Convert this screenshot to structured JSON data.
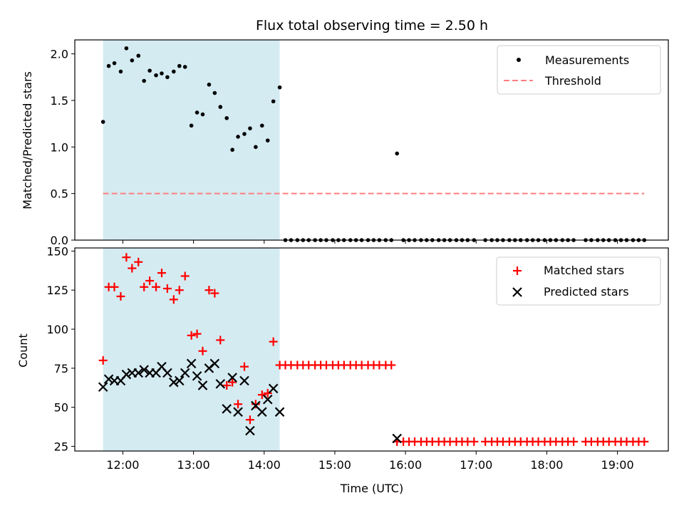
{
  "chart_data": {
    "title": "Flux total observing time = 2.50 h",
    "xlabel": "Time (UTC)",
    "xticks": [
      {
        "label": "12:00",
        "value": 12.0
      },
      {
        "label": "13:00",
        "value": 13.0
      },
      {
        "label": "14:00",
        "value": 14.0
      },
      {
        "label": "15:00",
        "value": 15.0
      },
      {
        "label": "16:00",
        "value": 16.0
      },
      {
        "label": "17:00",
        "value": 17.0
      },
      {
        "label": "18:00",
        "value": 18.0
      },
      {
        "label": "19:00",
        "value": 19.0
      }
    ],
    "xlim": [
      11.32,
      19.72
    ],
    "shaded_region": {
      "x_start": 11.72,
      "x_end": 14.22,
      "color": "#add8e6"
    },
    "colors": {
      "measurements": "#000000",
      "threshold": "#ff7f7f",
      "matched": "#ff0000",
      "predicted": "#000000",
      "shade": "#add8e6"
    },
    "charts": [
      {
        "type": "scatter",
        "panel": "top",
        "ylabel": "Matched/Predicted stars",
        "ylim": [
          0,
          2.15
        ],
        "yticks": [
          "0.0",
          "0.5",
          "1.0",
          "1.5",
          "2.0"
        ],
        "legend_position": "top-right",
        "series": [
          {
            "name": "Measurements",
            "style": "dot",
            "x": [
              11.72,
              11.8,
              11.88,
              11.97,
              12.05,
              12.13,
              12.22,
              12.3,
              12.38,
              12.47,
              12.55,
              12.63,
              12.72,
              12.8,
              12.88,
              12.97,
              13.05,
              13.13,
              13.22,
              13.3,
              13.38,
              13.47,
              13.55,
              13.63,
              13.72,
              13.8,
              13.88,
              13.97,
              14.05,
              14.13,
              14.22,
              14.3,
              14.38,
              14.47,
              14.55,
              14.63,
              14.72,
              14.8,
              14.88,
              14.97,
              15.05,
              15.13,
              15.22,
              15.3,
              15.38,
              15.47,
              15.55,
              15.63,
              15.72,
              15.8,
              15.88,
              15.97,
              16.05,
              16.13,
              16.22,
              16.3,
              16.38,
              16.47,
              16.55,
              16.63,
              16.72,
              16.8,
              16.88,
              16.97,
              17.13,
              17.22,
              17.3,
              17.38,
              17.47,
              17.55,
              17.63,
              17.72,
              17.8,
              17.88,
              17.97,
              18.05,
              18.13,
              18.22,
              18.3,
              18.38,
              18.55,
              18.63,
              18.72,
              18.8,
              18.88,
              18.97,
              19.05,
              19.13,
              19.22,
              19.3,
              19.38
            ],
            "y": [
              1.27,
              1.87,
              1.9,
              1.81,
              2.06,
              1.93,
              1.98,
              1.71,
              1.82,
              1.77,
              1.79,
              1.75,
              1.81,
              1.87,
              1.86,
              1.23,
              1.37,
              1.35,
              1.67,
              1.58,
              1.43,
              1.31,
              0.97,
              1.11,
              1.14,
              1.2,
              1.0,
              1.23,
              1.07,
              1.49,
              1.64,
              0.0,
              0.0,
              0.0,
              0.0,
              0.0,
              0.0,
              0.0,
              0.0,
              0.0,
              0.0,
              0.0,
              0.0,
              0.0,
              0.0,
              0.0,
              0.0,
              0.0,
              0.0,
              0.0,
              0.93,
              0.0,
              0.0,
              0.0,
              0.0,
              0.0,
              0.0,
              0.0,
              0.0,
              0.0,
              0.0,
              0.0,
              0.0,
              0.0,
              0.0,
              0.0,
              0.0,
              0.0,
              0.0,
              0.0,
              0.0,
              0.0,
              0.0,
              0.0,
              0.0,
              0.0,
              0.0,
              0.0,
              0.0,
              0.0,
              0.0,
              0.0,
              0.0,
              0.0,
              0.0,
              0.0,
              0.0,
              0.0,
              0.0,
              0.0,
              0.0
            ]
          },
          {
            "name": "Threshold",
            "style": "dashed-line",
            "x": [
              11.72,
              19.38
            ],
            "y": [
              0.5,
              0.5
            ]
          }
        ]
      },
      {
        "type": "scatter",
        "panel": "bottom",
        "ylabel": "Count",
        "ylim": [
          22,
          152
        ],
        "yticks": [
          "25",
          "50",
          "75",
          "100",
          "125",
          "150"
        ],
        "legend_position": "top-right",
        "series": [
          {
            "name": "Matched stars",
            "style": "plus",
            "x": [
              11.72,
              11.8,
              11.88,
              11.97,
              12.05,
              12.13,
              12.22,
              12.3,
              12.38,
              12.47,
              12.55,
              12.63,
              12.72,
              12.8,
              12.88,
              12.97,
              13.05,
              13.13,
              13.22,
              13.3,
              13.38,
              13.47,
              13.55,
              13.63,
              13.72,
              13.8,
              13.88,
              13.97,
              14.05,
              14.13,
              14.22,
              14.3,
              14.38,
              14.47,
              14.55,
              14.63,
              14.72,
              14.8,
              14.88,
              14.97,
              15.05,
              15.13,
              15.22,
              15.3,
              15.38,
              15.47,
              15.55,
              15.63,
              15.72,
              15.8,
              15.88,
              15.97,
              16.05,
              16.13,
              16.22,
              16.3,
              16.38,
              16.47,
              16.55,
              16.63,
              16.72,
              16.8,
              16.88,
              16.97,
              17.13,
              17.22,
              17.3,
              17.38,
              17.47,
              17.55,
              17.63,
              17.72,
              17.8,
              17.88,
              17.97,
              18.05,
              18.13,
              18.22,
              18.3,
              18.38,
              18.55,
              18.63,
              18.72,
              18.8,
              18.88,
              18.97,
              19.05,
              19.13,
              19.22,
              19.3,
              19.38
            ],
            "y": [
              80,
              127,
              127,
              121,
              146,
              139,
              143,
              127,
              131,
              127,
              136,
              126,
              119,
              125,
              134,
              96,
              97,
              86,
              125,
              123,
              93,
              64,
              66,
              52,
              76,
              42,
              52,
              58,
              59,
              92,
              77,
              77,
              77,
              77,
              77,
              77,
              77,
              77,
              77,
              77,
              77,
              77,
              77,
              77,
              77,
              77,
              77,
              77,
              77,
              77,
              28,
              28,
              28,
              28,
              28,
              28,
              28,
              28,
              28,
              28,
              28,
              28,
              28,
              28,
              28,
              28,
              28,
              28,
              28,
              28,
              28,
              28,
              28,
              28,
              28,
              28,
              28,
              28,
              28,
              28,
              28,
              28,
              28,
              28,
              28,
              28,
              28,
              28,
              28,
              28,
              28
            ]
          },
          {
            "name": "Predicted stars",
            "style": "x",
            "x": [
              11.72,
              11.8,
              11.88,
              11.97,
              12.05,
              12.13,
              12.22,
              12.3,
              12.38,
              12.47,
              12.55,
              12.63,
              12.72,
              12.8,
              12.88,
              12.97,
              13.05,
              13.13,
              13.22,
              13.3,
              13.38,
              13.47,
              13.55,
              13.63,
              13.72,
              13.8,
              13.88,
              13.97,
              14.05,
              14.13,
              14.22,
              15.88
            ],
            "y": [
              63,
              68,
              67,
              67,
              71,
              72,
              72,
              74,
              72,
              72,
              76,
              72,
              66,
              67,
              72,
              78,
              70,
              64,
              75,
              78,
              65,
              49,
              69,
              47,
              67,
              35,
              51,
              47,
              55,
              62,
              47,
              30
            ]
          }
        ]
      }
    ]
  }
}
